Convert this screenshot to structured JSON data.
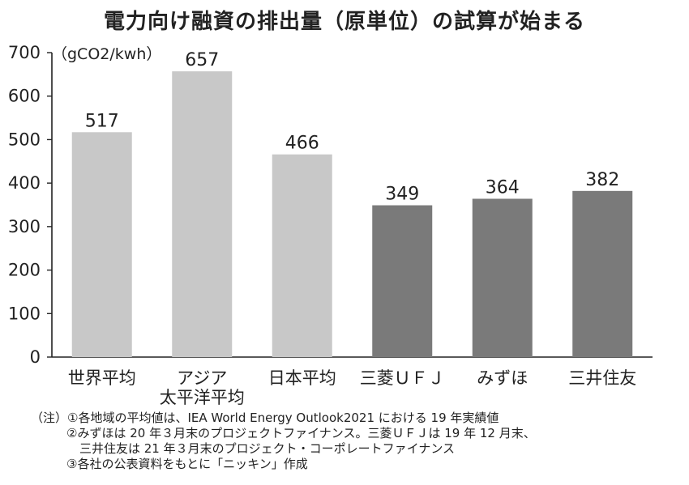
{
  "chart_data": {
    "type": "bar",
    "title": "電力向け融資の排出量（原単位）の試算が始まる",
    "unit_label": "（gCO2/kwh）",
    "ylim": [
      0,
      700
    ],
    "yticks": [
      0,
      100,
      200,
      300,
      400,
      500,
      600,
      700
    ],
    "categories": [
      [
        "世界平均"
      ],
      [
        "アジア",
        "太平洋平均"
      ],
      [
        "日本平均"
      ],
      [
        "三菱ＵＦＪ"
      ],
      [
        "みずほ"
      ],
      [
        "三井住友"
      ]
    ],
    "values": [
      517,
      657,
      466,
      349,
      364,
      382
    ],
    "bar_colors": [
      "#c8c8c8",
      "#c8c8c8",
      "#c8c8c8",
      "#7a7a7a",
      "#7a7a7a",
      "#7a7a7a"
    ],
    "grid": false
  },
  "notes": [
    "（注）①各地域の平均値は、IEA World Energy Outlook2021 における 19 年実績値",
    "②みずほは 20 年３月末のプロジェクトファイナンス。三菱ＵＦＪは 19 年 12 月末、",
    "三井住友は 21 年３月末のプロジェクト・コーポレートファイナンス",
    "③各社の公表資料をもとに「ニッキン」作成"
  ]
}
